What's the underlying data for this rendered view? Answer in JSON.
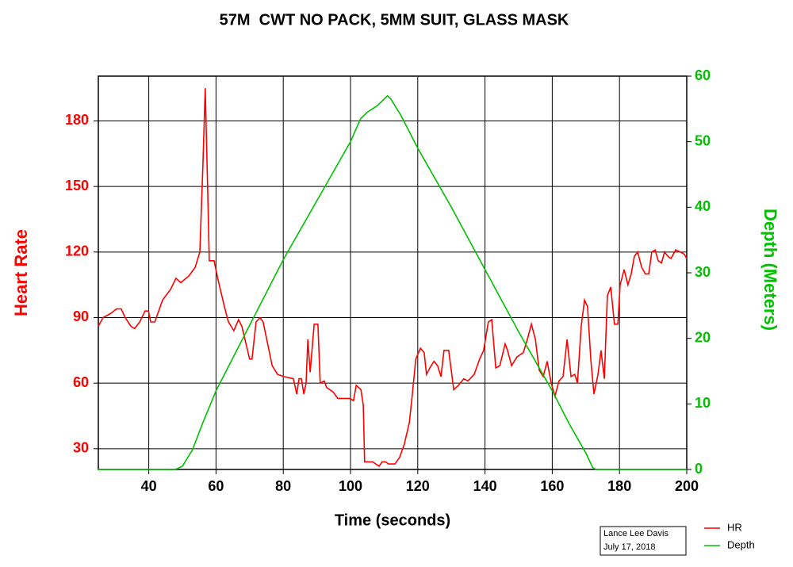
{
  "chart_data": {
    "type": "line",
    "title": "57M  CWT NO PACK, 5MM SUIT, GLASS MASK",
    "x_label": "Time (seconds)",
    "y_label": "Heart Rate",
    "y2_label": "Depth (Meters)",
    "xlim": [
      25,
      200
    ],
    "xticks": [
      40,
      60,
      80,
      100,
      120,
      140,
      160,
      180,
      200
    ],
    "ylim": [
      20.5,
      200.5
    ],
    "yticks": [
      30,
      60,
      90,
      120,
      150,
      180
    ],
    "y2lim": [
      0,
      60
    ],
    "y2ticks": [
      0,
      10,
      20,
      30,
      40,
      50,
      60
    ],
    "grid": true,
    "legend": "lower right",
    "annotations": [
      "Lance Lee  Davis",
      "July 17, 2018"
    ],
    "series": [
      {
        "name": "HR",
        "color": "#ff0000",
        "axis": "y",
        "x": [
          25,
          26.4,
          28.8,
          30.4,
          31.8,
          33,
          34.7,
          35.8,
          37.3,
          38.9,
          39.9,
          40.6,
          41.8,
          44.1,
          46.5,
          48.1,
          49.5,
          51.9,
          53.8,
          55.2,
          56.1,
          56.8,
          57.5,
          58,
          59.4,
          60.8,
          62.5,
          63.7,
          65.3,
          66.7,
          67.7,
          70,
          70.7,
          71.9,
          73.1,
          74,
          75.5,
          76.7,
          78.3,
          80.2,
          83,
          84,
          84.7,
          85.4,
          86.1,
          86.8,
          87.3,
          88,
          89.2,
          90.3,
          91,
          92.2,
          92.9,
          94.8,
          96.2,
          99.8,
          100.9,
          101.7,
          103.1,
          103.8,
          104.2,
          106.6,
          107.5,
          108.5,
          109.4,
          110.4,
          111.3,
          113.2,
          114.6,
          116,
          117.5,
          118.4,
          119.4,
          120.8,
          121.9,
          122.6,
          123.6,
          124.8,
          125.9,
          126.9,
          127.8,
          129.2,
          130.7,
          132.1,
          133.7,
          134.9,
          136.8,
          138.4,
          139.6,
          141,
          142,
          143.2,
          144.4,
          146,
          146.7,
          147.9,
          149.5,
          151.4,
          152.6,
          153.8,
          155,
          156.1,
          157.3,
          158.5,
          159.7,
          160.8,
          162,
          163.2,
          164.4,
          165.6,
          166.7,
          167.5,
          168.6,
          169.6,
          170.5,
          171.5,
          172.4,
          173.6,
          174.5,
          175.5,
          176.4,
          177.4,
          178.5,
          179.5,
          180.2,
          181.4,
          182.5,
          183.5,
          184.4,
          185.4,
          186.6,
          187.7,
          188.7,
          189.6,
          190.6,
          191.5,
          192.5,
          193.4,
          194.4,
          195.3,
          196.7,
          198.1,
          199.3,
          200
        ],
        "values": [
          86,
          90,
          92,
          94,
          94,
          90,
          86,
          85,
          88,
          93,
          93,
          88,
          88,
          98,
          103,
          108,
          106,
          109,
          113,
          120,
          160,
          195,
          150,
          116,
          116,
          106,
          95,
          88,
          84,
          89,
          86,
          71,
          71,
          88,
          90,
          88,
          77,
          68,
          64,
          63,
          62,
          55,
          62,
          62,
          55,
          60,
          80,
          65,
          87,
          87,
          60,
          61,
          58,
          56,
          53,
          53,
          52,
          59,
          57,
          50,
          24,
          24,
          23,
          22,
          24,
          24,
          23,
          23,
          26,
          32,
          42,
          55,
          71,
          76,
          74,
          64,
          67,
          70,
          68,
          63,
          75,
          75,
          57,
          59,
          62,
          61,
          64,
          71,
          75,
          88,
          89,
          67,
          68,
          78,
          75,
          68,
          72,
          74,
          80,
          87,
          80,
          66,
          63,
          70,
          60,
          54,
          61,
          63,
          80,
          63,
          64,
          60,
          86,
          98,
          95,
          70,
          55,
          64,
          75,
          62,
          100,
          104,
          87,
          87,
          105,
          112,
          105,
          110,
          118,
          120,
          113,
          110,
          110,
          120,
          121,
          116,
          115,
          120,
          118,
          117,
          121,
          120,
          119,
          117
        ]
      },
      {
        "name": "Depth",
        "color": "#00c000",
        "axis": "y2",
        "x": [
          25,
          48,
          50,
          53,
          56,
          60,
          70,
          80,
          90,
          100,
          103,
          105,
          108,
          110,
          111,
          112,
          115,
          120,
          130,
          140,
          150,
          160,
          165,
          170,
          172,
          173,
          200
        ],
        "values": [
          0,
          0,
          0.5,
          3,
          7,
          12,
          22,
          32,
          41,
          50,
          53.5,
          54.5,
          55.5,
          56.5,
          57,
          56.5,
          54,
          49,
          40,
          30.5,
          21,
          12,
          7,
          2.5,
          0.3,
          0,
          0
        ]
      }
    ]
  }
}
